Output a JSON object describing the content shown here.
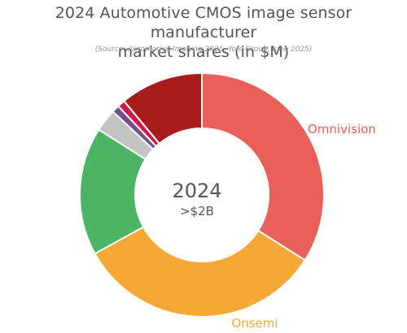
{
  "chart_data": {
    "type": "pie",
    "title": "2024 Automotive CMOS image sensor manufacturer market shares (in $M)",
    "title_lines": [
      "2024 Automotive CMOS image sensor manufacturer",
      "market shares (in $M)"
    ],
    "subtitle": "(Source: Automotive Imaging 2025, Yole Group, June 2025)",
    "center_text": "2024",
    "center_subtext": ">$2B",
    "donut": true,
    "slices": [
      {
        "label": "Omnivision",
        "value": 34,
        "color": "#eb5f59"
      },
      {
        "label": "Onsemi",
        "value": 33,
        "color": "#f5a836"
      },
      {
        "label": "",
        "value": 17,
        "color": "#4cb465"
      },
      {
        "label": "",
        "value": 3,
        "color": "#c3c3c3"
      },
      {
        "label": "",
        "value": 1,
        "color": "#7a4f8a"
      },
      {
        "label": "",
        "value": 1,
        "color": "#d01a4c"
      },
      {
        "label": "",
        "value": 11,
        "color": "#a81c1c"
      }
    ]
  }
}
